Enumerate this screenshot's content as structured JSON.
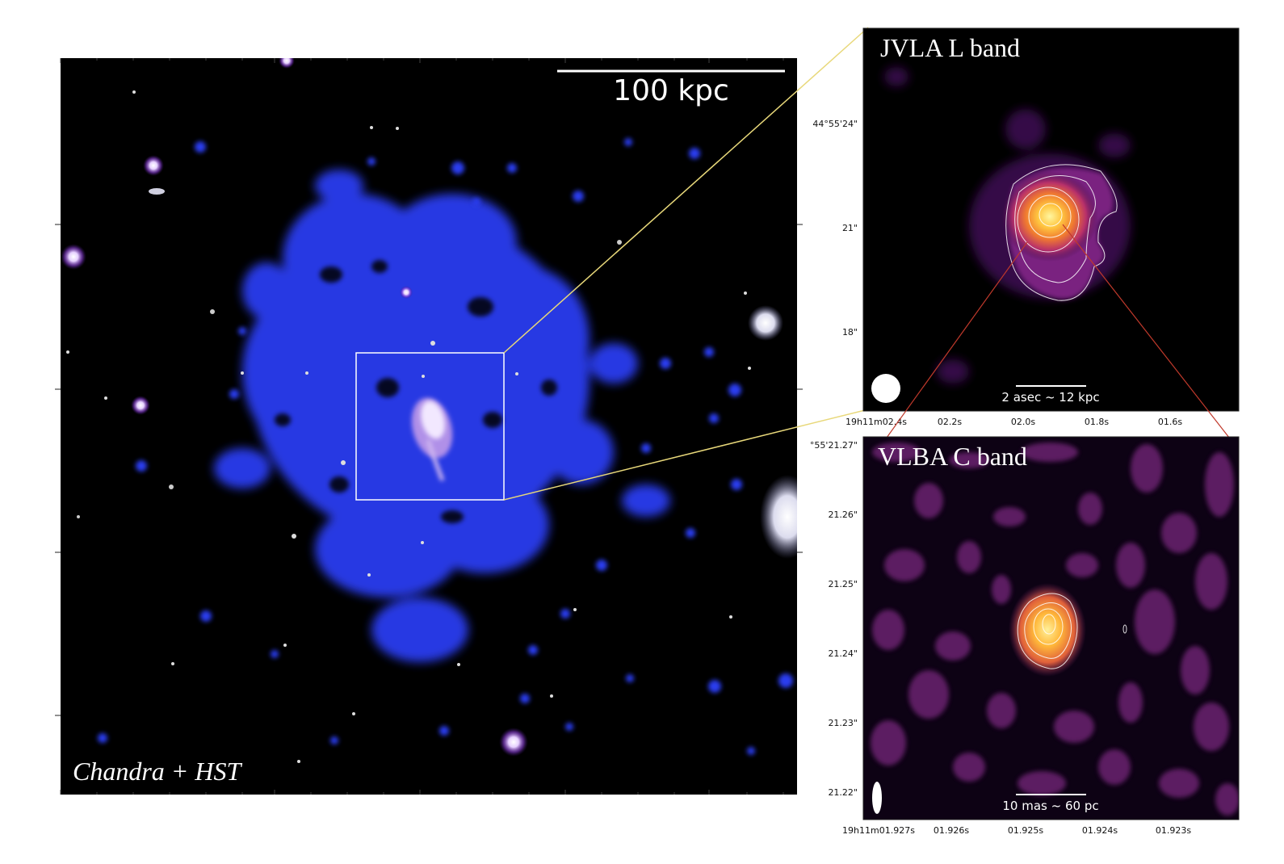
{
  "main_panel": {
    "scale_bar_label": "100 kpc",
    "caption": "Chandra + HST"
  },
  "jvla_panel": {
    "title": "JVLA L band",
    "scale_label": "2 asec ~ 12 kpc",
    "y_ticks": [
      "44°55'24\"",
      "21\"",
      "18\""
    ],
    "x_ticks": [
      "19h11m02.4s",
      "02.2s",
      "02.0s",
      "01.8s",
      "01.6s"
    ]
  },
  "vlba_panel": {
    "title": "VLBA C band",
    "scale_label": "10 mas ~ 60 pc",
    "y_ticks": [
      "°55'21.27\"",
      "21.26\"",
      "21.25\"",
      "21.24\"",
      "21.23\"",
      "21.22\""
    ],
    "x_ticks": [
      "19h11m01.927s",
      "01.926s",
      "01.925s",
      "01.924s",
      "01.923s"
    ]
  },
  "colors": {
    "xray_blue": "#2a3cf0",
    "zoom_line_yellow": "#e8d87a",
    "zoom_line_red": "#c0392b",
    "radio_orange": "#f5a623"
  }
}
